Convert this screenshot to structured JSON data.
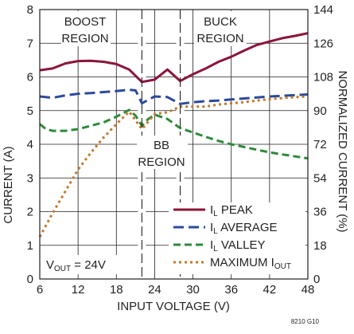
{
  "chart_data": {
    "type": "line",
    "xlabel": "INPUT VOLTAGE (V)",
    "ylabel": "CURRENT  (A)",
    "y2label": "NORMALIZED CURRENT  (%)",
    "xlim": [
      6,
      48
    ],
    "ylim": [
      0,
      8
    ],
    "y2lim": [
      0,
      144
    ],
    "xticks": [
      6,
      12,
      18,
      24,
      30,
      36,
      42,
      48
    ],
    "yticks": [
      0,
      1,
      2,
      3,
      4,
      5,
      6,
      7,
      8
    ],
    "y2ticks": [
      0,
      18,
      36,
      54,
      72,
      90,
      108,
      126,
      144
    ],
    "grid": true,
    "region_boundaries_x": [
      22,
      28
    ],
    "annotations": {
      "boost": [
        "BOOST",
        "REGION"
      ],
      "buck": [
        "BUCK",
        "REGION"
      ],
      "bb": [
        "BB",
        "REGION"
      ],
      "vout_main": "V",
      "vout_sub": "OUT",
      "vout_rest": " = 24V"
    },
    "legend": {
      "position": "bottom-right",
      "entries": [
        {
          "main": "I",
          "sub": "L",
          "rest": " PEAK"
        },
        {
          "main": "I",
          "sub": "L",
          "rest": " AVERAGE"
        },
        {
          "main": "I",
          "sub": "L",
          "rest": " VALLEY"
        },
        {
          "main": "MAXIMUM I",
          "sub": "OUT",
          "rest": ""
        }
      ]
    },
    "series": [
      {
        "color": "#8b1538",
        "dash": "",
        "axis": "left",
        "x": [
          6,
          8,
          10,
          12,
          14,
          16,
          18,
          20,
          22,
          24,
          26,
          28,
          30,
          32,
          34,
          36,
          38,
          40,
          42,
          44,
          46,
          48
        ],
        "y": [
          6.2,
          6.25,
          6.4,
          6.47,
          6.48,
          6.45,
          6.38,
          6.22,
          5.85,
          5.92,
          6.22,
          5.88,
          6.08,
          6.25,
          6.45,
          6.6,
          6.78,
          6.95,
          7.05,
          7.15,
          7.22,
          7.3
        ]
      },
      {
        "color": "#2b4a9b",
        "dash": "13 6",
        "axis": "left",
        "x": [
          6,
          8,
          10,
          12,
          14,
          16,
          18,
          20,
          21,
          22,
          24,
          26,
          28,
          30,
          32,
          34,
          36,
          38,
          40,
          42,
          44,
          46,
          48
        ],
        "y": [
          5.42,
          5.38,
          5.45,
          5.5,
          5.52,
          5.55,
          5.58,
          5.62,
          5.6,
          5.22,
          5.42,
          5.4,
          5.2,
          5.25,
          5.28,
          5.3,
          5.33,
          5.36,
          5.39,
          5.42,
          5.44,
          5.46,
          5.48
        ]
      },
      {
        "color": "#2e8a3c",
        "dash": "9 5",
        "axis": "left",
        "x": [
          6,
          7,
          8,
          10,
          12,
          14,
          16,
          18,
          20,
          21,
          22,
          23,
          24,
          26,
          28,
          30,
          32,
          34,
          36,
          38,
          40,
          42,
          44,
          46,
          48
        ],
        "y": [
          4.6,
          4.45,
          4.4,
          4.4,
          4.45,
          4.55,
          4.65,
          4.82,
          5.02,
          4.85,
          4.55,
          4.75,
          4.88,
          4.75,
          4.48,
          4.35,
          4.22,
          4.1,
          4.0,
          3.92,
          3.84,
          3.76,
          3.7,
          3.64,
          3.58
        ]
      },
      {
        "color": "#c0782e",
        "dash": "3 4",
        "axis": "left",
        "x": [
          6,
          8,
          10,
          12,
          14,
          16,
          18,
          20,
          22,
          24,
          26,
          28,
          30,
          32,
          34,
          36,
          38,
          40,
          42,
          44,
          46,
          48
        ],
        "y": [
          1.25,
          1.95,
          2.6,
          3.25,
          3.75,
          4.2,
          4.6,
          4.97,
          4.45,
          4.9,
          4.95,
          5.12,
          5.12,
          5.12,
          5.18,
          5.22,
          5.25,
          5.3,
          5.34,
          5.37,
          5.4,
          5.42
        ]
      }
    ]
  },
  "footer": {
    "figure_id": "8210 G10"
  }
}
